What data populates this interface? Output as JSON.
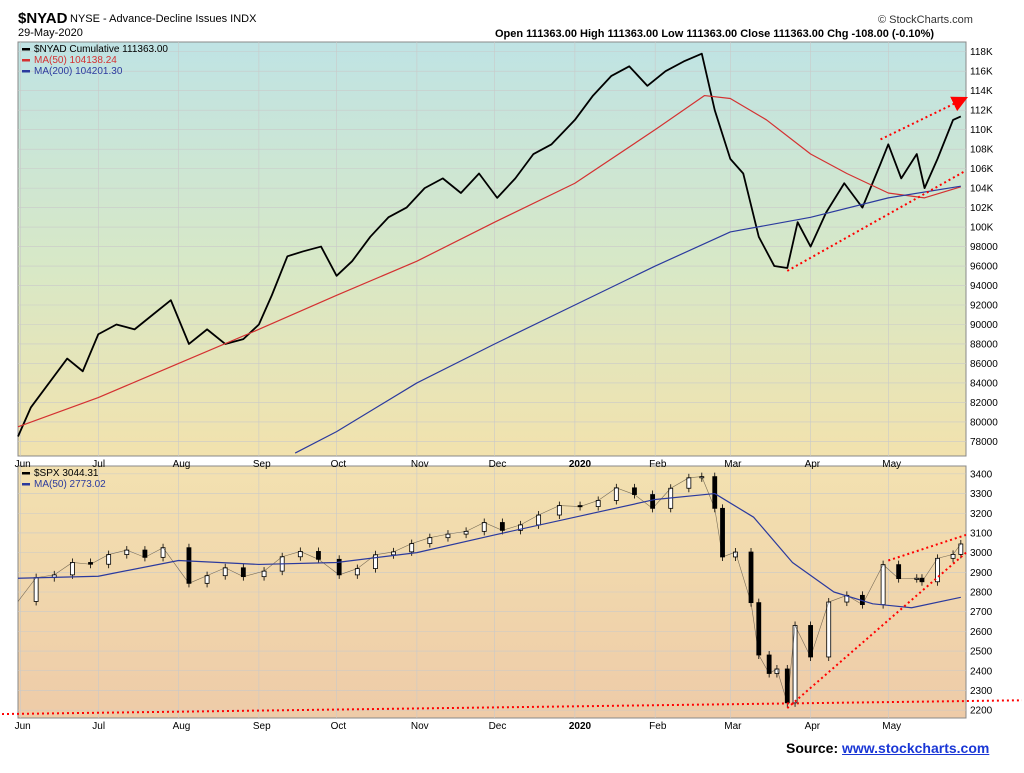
{
  "header": {
    "symbol": "$NYAD",
    "description": "NYSE - Advance-Decline Issues INDX",
    "date": "29-May-2020",
    "ohlc": "Open 111363.00   High 111363.00   Low 111363.00   Close 111363.00   Chg -108.00 (-0.10%)",
    "copyright": "© StockCharts.com"
  },
  "source": {
    "label": "Source: ",
    "link": "www.stockcharts.com"
  },
  "colors": {
    "price": "#000000",
    "ma50": "#d43131",
    "ma200": "#2b3a9e",
    "trend": "#ff0000"
  },
  "chart_data": [
    {
      "type": "line",
      "legend": [
        {
          "label": "$NYAD Cumulative 111363.00",
          "color": "#000000"
        },
        {
          "label": "MA(50) 104138.24",
          "color": "#d43131"
        },
        {
          "label": "MA(200) 104201.30",
          "color": "#2b3a9e"
        }
      ],
      "legend_position": "top-left",
      "ylim": [
        76500,
        119000
      ],
      "y_ticks": [
        78000,
        80000,
        82000,
        84000,
        86000,
        88000,
        90000,
        92000,
        94000,
        96000,
        98000,
        100000,
        102000,
        104000,
        106000,
        108000,
        110000,
        112000,
        114000,
        116000,
        118000
      ],
      "y_tick_labels": [
        "78000",
        "80000",
        "82000",
        "84000",
        "86000",
        "88000",
        "90000",
        "92000",
        "94000",
        "96000",
        "98000",
        "100K",
        "102K",
        "104K",
        "106K",
        "108K",
        "110K",
        "112K",
        "114K",
        "116K",
        "118K"
      ],
      "x_start": "2019-05-31",
      "x_end": "2020-05-31",
      "x_ticks": [
        {
          "date": "2019-06-01",
          "label": "Jun"
        },
        {
          "date": "2019-07-01",
          "label": "Jul"
        },
        {
          "date": "2019-08-01",
          "label": "Aug"
        },
        {
          "date": "2019-09-01",
          "label": "Sep"
        },
        {
          "date": "2019-10-01",
          "label": "Oct"
        },
        {
          "date": "2019-11-01",
          "label": "Nov"
        },
        {
          "date": "2019-12-01",
          "label": "Dec"
        },
        {
          "date": "2020-01-01",
          "label": "2020"
        },
        {
          "date": "2020-02-01",
          "label": "Feb"
        },
        {
          "date": "2020-03-01",
          "label": "Mar"
        },
        {
          "date": "2020-04-01",
          "label": "Apr"
        },
        {
          "date": "2020-05-01",
          "label": "May"
        }
      ],
      "series": [
        {
          "name": "$NYAD Cumulative",
          "points": [
            [
              "2019-05-31",
              78500
            ],
            [
              "2019-06-05",
              81500
            ],
            [
              "2019-06-12",
              84000
            ],
            [
              "2019-06-19",
              86500
            ],
            [
              "2019-06-25",
              85200
            ],
            [
              "2019-07-01",
              89000
            ],
            [
              "2019-07-08",
              90000
            ],
            [
              "2019-07-15",
              89500
            ],
            [
              "2019-07-22",
              91000
            ],
            [
              "2019-07-29",
              92500
            ],
            [
              "2019-08-05",
              88000
            ],
            [
              "2019-08-12",
              89500
            ],
            [
              "2019-08-19",
              88000
            ],
            [
              "2019-08-26",
              88500
            ],
            [
              "2019-09-01",
              90000
            ],
            [
              "2019-09-06",
              93000
            ],
            [
              "2019-09-12",
              97000
            ],
            [
              "2019-09-18",
              97500
            ],
            [
              "2019-09-25",
              98000
            ],
            [
              "2019-10-01",
              95000
            ],
            [
              "2019-10-07",
              96500
            ],
            [
              "2019-10-14",
              99000
            ],
            [
              "2019-10-21",
              101000
            ],
            [
              "2019-10-28",
              102000
            ],
            [
              "2019-11-04",
              104000
            ],
            [
              "2019-11-11",
              105000
            ],
            [
              "2019-11-18",
              103500
            ],
            [
              "2019-11-25",
              105500
            ],
            [
              "2019-12-02",
              103000
            ],
            [
              "2019-12-09",
              105000
            ],
            [
              "2019-12-16",
              107500
            ],
            [
              "2019-12-23",
              108500
            ],
            [
              "2020-01-01",
              111000
            ],
            [
              "2020-01-08",
              113500
            ],
            [
              "2020-01-15",
              115500
            ],
            [
              "2020-01-22",
              116500
            ],
            [
              "2020-01-29",
              114500
            ],
            [
              "2020-02-05",
              116000
            ],
            [
              "2020-02-12",
              117000
            ],
            [
              "2020-02-19",
              117800
            ],
            [
              "2020-02-24",
              112000
            ],
            [
              "2020-03-01",
              107000
            ],
            [
              "2020-03-06",
              105500
            ],
            [
              "2020-03-12",
              99000
            ],
            [
              "2020-03-18",
              96000
            ],
            [
              "2020-03-23",
              95800
            ],
            [
              "2020-03-27",
              100500
            ],
            [
              "2020-04-01",
              98000
            ],
            [
              "2020-04-07",
              101500
            ],
            [
              "2020-04-14",
              104500
            ],
            [
              "2020-04-21",
              102000
            ],
            [
              "2020-04-28",
              106500
            ],
            [
              "2020-05-01",
              108500
            ],
            [
              "2020-05-06",
              105000
            ],
            [
              "2020-05-12",
              107500
            ],
            [
              "2020-05-15",
              104000
            ],
            [
              "2020-05-20",
              107000
            ],
            [
              "2020-05-26",
              111000
            ],
            [
              "2020-05-29",
              111363
            ]
          ]
        },
        {
          "name": "MA(50)",
          "points": [
            [
              "2019-05-31",
              79500
            ],
            [
              "2019-07-01",
              82500
            ],
            [
              "2019-08-01",
              86000
            ],
            [
              "2019-09-01",
              89500
            ],
            [
              "2019-10-01",
              93000
            ],
            [
              "2019-11-01",
              96500
            ],
            [
              "2019-12-01",
              100500
            ],
            [
              "2020-01-01",
              104500
            ],
            [
              "2020-02-01",
              110000
            ],
            [
              "2020-02-20",
              113500
            ],
            [
              "2020-03-01",
              113200
            ],
            [
              "2020-03-15",
              111000
            ],
            [
              "2020-04-01",
              107500
            ],
            [
              "2020-04-15",
              105500
            ],
            [
              "2020-05-01",
              103500
            ],
            [
              "2020-05-15",
              103000
            ],
            [
              "2020-05-29",
              104138
            ]
          ]
        },
        {
          "name": "MA(200)",
          "points": [
            [
              "2019-09-15",
              76800
            ],
            [
              "2019-10-01",
              79000
            ],
            [
              "2019-11-01",
              84000
            ],
            [
              "2019-12-01",
              88000
            ],
            [
              "2020-01-01",
              92000
            ],
            [
              "2020-02-01",
              96000
            ],
            [
              "2020-03-01",
              99500
            ],
            [
              "2020-04-01",
              101000
            ],
            [
              "2020-05-01",
              103000
            ],
            [
              "2020-05-29",
              104201
            ]
          ]
        }
      ],
      "trendlines": [
        {
          "from": [
            "2020-03-23",
            95500
          ],
          "to": [
            "2020-05-31",
            105800
          ]
        },
        {
          "from": [
            "2020-04-28",
            109000
          ],
          "to": [
            "2020-05-29",
            113000
          ]
        }
      ]
    },
    {
      "type": "candlestick",
      "legend": [
        {
          "label": "$SPX 3044.31",
          "color": "#000000"
        },
        {
          "label": "MA(50) 2773.02",
          "color": "#2b3a9e"
        }
      ],
      "legend_position": "top-left",
      "ylim": [
        2160,
        3440
      ],
      "y_ticks": [
        2200,
        2300,
        2400,
        2500,
        2600,
        2700,
        2800,
        2900,
        3000,
        3100,
        3200,
        3300,
        3400
      ],
      "y_tick_labels": [
        "2200",
        "2300",
        "2400",
        "2500",
        "2600",
        "2700",
        "2800",
        "2900",
        "3000",
        "3100",
        "3200",
        "3300",
        "3400"
      ],
      "x_ticks": [
        {
          "date": "2019-06-01",
          "label": "Jun"
        },
        {
          "date": "2019-07-01",
          "label": "Jul"
        },
        {
          "date": "2019-08-01",
          "label": "Aug"
        },
        {
          "date": "2019-09-01",
          "label": "Sep"
        },
        {
          "date": "2019-10-01",
          "label": "Oct"
        },
        {
          "date": "2019-11-01",
          "label": "Nov"
        },
        {
          "date": "2019-12-01",
          "label": "Dec"
        },
        {
          "date": "2020-01-01",
          "label": "2020"
        },
        {
          "date": "2020-02-01",
          "label": "Feb"
        },
        {
          "date": "2020-03-01",
          "label": "Mar"
        },
        {
          "date": "2020-04-01",
          "label": "Apr"
        },
        {
          "date": "2020-05-01",
          "label": "May"
        }
      ],
      "series": [
        {
          "name": "$SPX",
          "points": [
            [
              "2019-05-31",
              2752
            ],
            [
              "2019-06-07",
              2873
            ],
            [
              "2019-06-14",
              2887
            ],
            [
              "2019-06-21",
              2950
            ],
            [
              "2019-06-28",
              2941
            ],
            [
              "2019-07-05",
              2990
            ],
            [
              "2019-07-12",
              3013
            ],
            [
              "2019-07-19",
              2976
            ],
            [
              "2019-07-26",
              3025
            ],
            [
              "2019-08-05",
              2844
            ],
            [
              "2019-08-12",
              2883
            ],
            [
              "2019-08-19",
              2923
            ],
            [
              "2019-08-26",
              2878
            ],
            [
              "2019-09-03",
              2906
            ],
            [
              "2019-09-10",
              2979
            ],
            [
              "2019-09-17",
              3006
            ],
            [
              "2019-09-24",
              2966
            ],
            [
              "2019-10-02",
              2887
            ],
            [
              "2019-10-09",
              2919
            ],
            [
              "2019-10-16",
              2989
            ],
            [
              "2019-10-23",
              3004
            ],
            [
              "2019-10-30",
              3046
            ],
            [
              "2019-11-06",
              3076
            ],
            [
              "2019-11-13",
              3094
            ],
            [
              "2019-11-20",
              3108
            ],
            [
              "2019-11-27",
              3153
            ],
            [
              "2019-12-04",
              3113
            ],
            [
              "2019-12-11",
              3141
            ],
            [
              "2019-12-18",
              3191
            ],
            [
              "2019-12-26",
              3239
            ],
            [
              "2020-01-03",
              3234
            ],
            [
              "2020-01-10",
              3265
            ],
            [
              "2020-01-17",
              3329
            ],
            [
              "2020-01-24",
              3295
            ],
            [
              "2020-01-31",
              3225
            ],
            [
              "2020-02-07",
              3327
            ],
            [
              "2020-02-14",
              3380
            ],
            [
              "2020-02-19",
              3386
            ],
            [
              "2020-02-24",
              3225
            ],
            [
              "2020-02-27",
              2978
            ],
            [
              "2020-03-03",
              3003
            ],
            [
              "2020-03-09",
              2746
            ],
            [
              "2020-03-12",
              2480
            ],
            [
              "2020-03-16",
              2386
            ],
            [
              "2020-03-19",
              2409
            ],
            [
              "2020-03-23",
              2237
            ],
            [
              "2020-03-26",
              2630
            ],
            [
              "2020-04-01",
              2470
            ],
            [
              "2020-04-08",
              2749
            ],
            [
              "2020-04-15",
              2783
            ],
            [
              "2020-04-21",
              2736
            ],
            [
              "2020-04-29",
              2939
            ],
            [
              "2020-05-05",
              2868
            ],
            [
              "2020-05-12",
              2870
            ],
            [
              "2020-05-14",
              2852
            ],
            [
              "2020-05-20",
              2971
            ],
            [
              "2020-05-26",
              2991
            ],
            [
              "2020-05-29",
              3044
            ]
          ]
        },
        {
          "name": "MA(50)",
          "points": [
            [
              "2019-05-31",
              2870
            ],
            [
              "2019-07-01",
              2880
            ],
            [
              "2019-08-01",
              2960
            ],
            [
              "2019-09-01",
              2940
            ],
            [
              "2019-10-01",
              2950
            ],
            [
              "2019-11-01",
              3000
            ],
            [
              "2019-12-01",
              3090
            ],
            [
              "2020-01-01",
              3180
            ],
            [
              "2020-02-01",
              3270
            ],
            [
              "2020-02-24",
              3300
            ],
            [
              "2020-03-10",
              3180
            ],
            [
              "2020-03-25",
              2950
            ],
            [
              "2020-04-10",
              2800
            ],
            [
              "2020-04-25",
              2740
            ],
            [
              "2020-05-10",
              2720
            ],
            [
              "2020-05-29",
              2773
            ]
          ]
        }
      ],
      "trendlines": [
        {
          "from": [
            "2020-03-23",
            2210
          ],
          "to": [
            "2020-05-31",
            3000
          ]
        },
        {
          "from": [
            "2020-05-01",
            2960
          ],
          "to": [
            "2020-05-31",
            3090
          ]
        },
        {
          "from": [
            "2019-05-31",
            2180
          ],
          "to": [
            "2020-05-31",
            2250
          ]
        }
      ]
    }
  ]
}
